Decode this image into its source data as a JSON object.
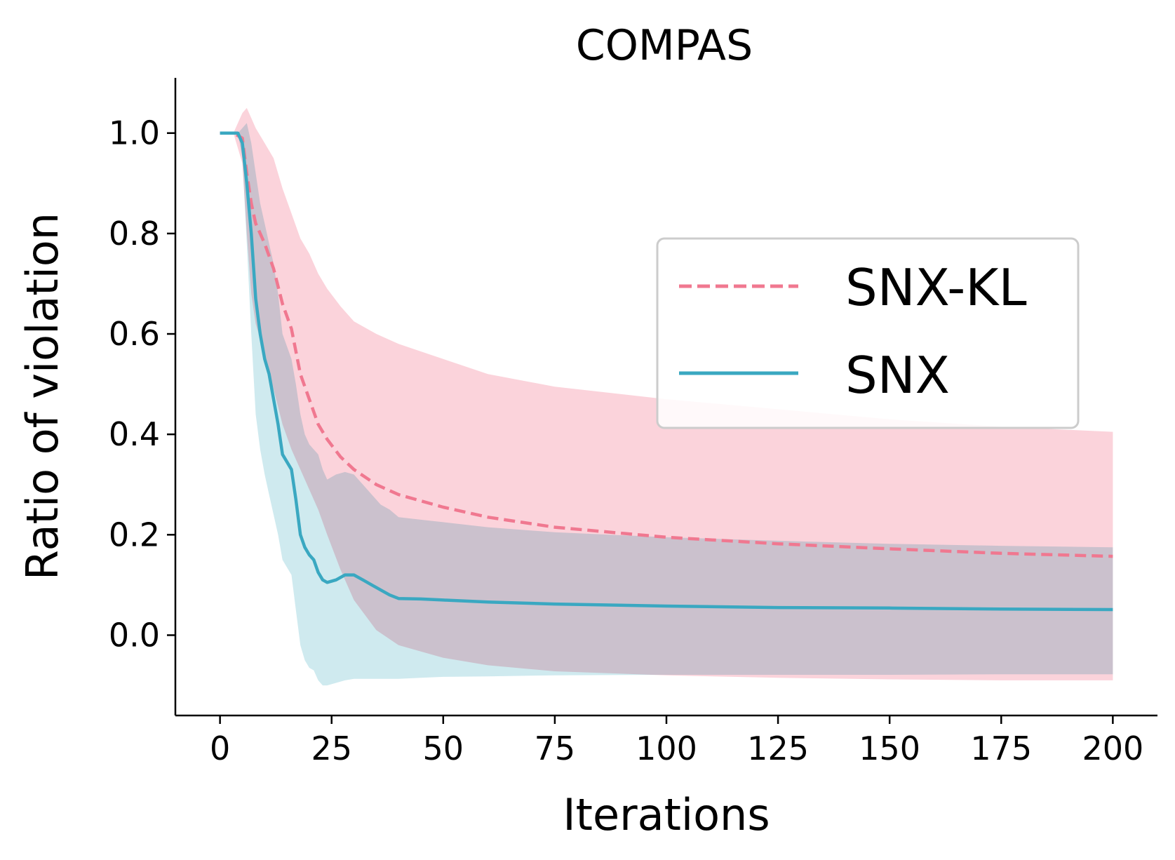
{
  "chart_data": {
    "type": "line",
    "title": "COMPAS",
    "xlabel": "Iterations",
    "ylabel": "Ratio of violation",
    "xlim": [
      -10,
      210
    ],
    "ylim": [
      -0.16,
      1.11
    ],
    "xticks": [
      0,
      25,
      50,
      75,
      100,
      125,
      150,
      175,
      200
    ],
    "yticks": [
      0.0,
      0.2,
      0.4,
      0.6,
      0.8,
      1.0
    ],
    "xtick_labels": [
      "0",
      "25",
      "50",
      "75",
      "100",
      "125",
      "150",
      "175",
      "200"
    ],
    "ytick_labels": [
      "0.0",
      "0.2",
      "0.4",
      "0.6",
      "0.8",
      "1.0"
    ],
    "legend_position": "center-right",
    "series": [
      {
        "name": "SNX-KL",
        "color": "#f07890",
        "band_color": "#fbd3db",
        "line_style": "dashed",
        "x": [
          0,
          3,
          5,
          6,
          7,
          8,
          10,
          12,
          14,
          16,
          18,
          20,
          22,
          24,
          27,
          30,
          35,
          40,
          50,
          60,
          75,
          100,
          125,
          150,
          175,
          200
        ],
        "mean": [
          1.0,
          1.0,
          0.99,
          0.92,
          0.86,
          0.82,
          0.78,
          0.73,
          0.66,
          0.61,
          0.52,
          0.47,
          0.42,
          0.39,
          0.355,
          0.33,
          0.3,
          0.28,
          0.255,
          0.235,
          0.215,
          0.195,
          0.182,
          0.172,
          0.163,
          0.157
        ],
        "upper": [
          1.0,
          1.0,
          1.04,
          1.05,
          1.03,
          1.01,
          0.98,
          0.95,
          0.89,
          0.84,
          0.79,
          0.76,
          0.72,
          0.69,
          0.655,
          0.625,
          0.6,
          0.58,
          0.55,
          0.52,
          0.495,
          0.47,
          0.45,
          0.43,
          0.415,
          0.405
        ],
        "lower": [
          1.0,
          1.0,
          0.94,
          0.8,
          0.68,
          0.62,
          0.56,
          0.49,
          0.42,
          0.37,
          0.33,
          0.29,
          0.25,
          0.2,
          0.13,
          0.07,
          0.01,
          -0.02,
          -0.045,
          -0.06,
          -0.072,
          -0.08,
          -0.085,
          -0.088,
          -0.09,
          -0.09
        ]
      },
      {
        "name": "SNX",
        "color": "#3aa8c1",
        "band_color": "#bfe3ea",
        "line_style": "solid",
        "x": [
          0,
          3,
          4,
          5,
          6,
          7,
          8,
          9,
          10,
          11,
          12,
          13,
          14,
          16,
          17,
          18,
          19,
          20,
          21,
          22,
          23,
          24,
          26,
          28,
          30,
          32,
          34,
          36,
          38,
          40,
          45,
          50,
          60,
          75,
          100,
          125,
          150,
          175,
          200
        ],
        "mean": [
          1.0,
          1.0,
          1.0,
          0.98,
          0.9,
          0.8,
          0.67,
          0.6,
          0.55,
          0.52,
          0.47,
          0.42,
          0.36,
          0.33,
          0.27,
          0.2,
          0.175,
          0.16,
          0.15,
          0.125,
          0.11,
          0.105,
          0.11,
          0.12,
          0.12,
          0.11,
          0.1,
          0.09,
          0.08,
          0.073,
          0.072,
          0.07,
          0.066,
          0.062,
          0.058,
          0.055,
          0.054,
          0.052,
          0.051
        ],
        "upper": [
          1.0,
          1.0,
          1.0,
          1.01,
          1.02,
          0.98,
          0.92,
          0.86,
          0.82,
          0.78,
          0.74,
          0.68,
          0.6,
          0.55,
          0.5,
          0.44,
          0.4,
          0.38,
          0.37,
          0.36,
          0.33,
          0.31,
          0.32,
          0.325,
          0.32,
          0.3,
          0.28,
          0.26,
          0.25,
          0.235,
          0.23,
          0.225,
          0.215,
          0.205,
          0.195,
          0.188,
          0.182,
          0.178,
          0.175
        ],
        "lower": [
          1.0,
          1.0,
          1.0,
          0.95,
          0.78,
          0.6,
          0.44,
          0.37,
          0.32,
          0.28,
          0.24,
          0.2,
          0.15,
          0.12,
          0.05,
          -0.02,
          -0.05,
          -0.065,
          -0.07,
          -0.09,
          -0.1,
          -0.1,
          -0.095,
          -0.09,
          -0.087,
          -0.087,
          -0.087,
          -0.087,
          -0.087,
          -0.087,
          -0.085,
          -0.083,
          -0.082,
          -0.08,
          -0.079,
          -0.079,
          -0.079,
          -0.078,
          -0.078
        ]
      }
    ]
  }
}
